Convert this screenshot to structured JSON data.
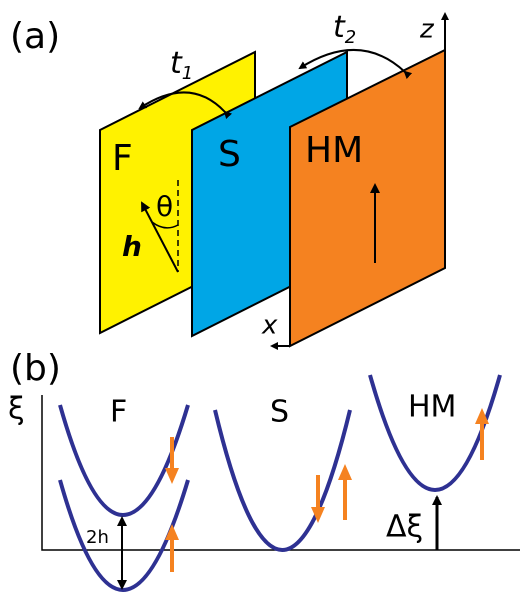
{
  "panel_a": {
    "label": "(a)",
    "hoppings": [
      {
        "symbol": "t",
        "subscript": "1"
      },
      {
        "symbol": "t",
        "subscript": "2"
      }
    ],
    "axes": {
      "z": "z",
      "x": "x"
    },
    "layers": [
      "F",
      "S",
      "HM"
    ],
    "angle": "θ",
    "field": "h"
  },
  "panel_b": {
    "label": "(b)",
    "axis": "ξ",
    "bands": [
      "F",
      "S",
      "HM"
    ],
    "splitting": "2h",
    "offset": "Δξ"
  }
}
